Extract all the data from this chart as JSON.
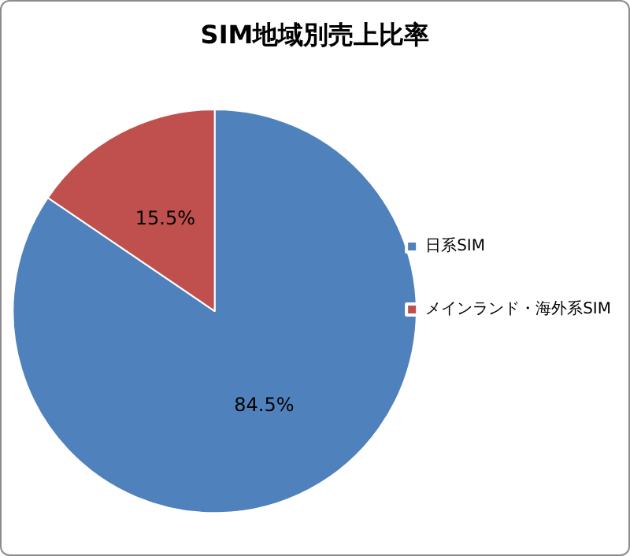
{
  "chart_data": {
    "type": "pie",
    "title": "SIM地域別売上比率",
    "categories": [
      "日系SIM",
      "メインランド・海外系SIM"
    ],
    "values": [
      84.5,
      15.5
    ],
    "colors": [
      "#4f81bd",
      "#c0504d"
    ],
    "value_labels": [
      "84.5%",
      "15.5%"
    ],
    "legend": "right"
  }
}
